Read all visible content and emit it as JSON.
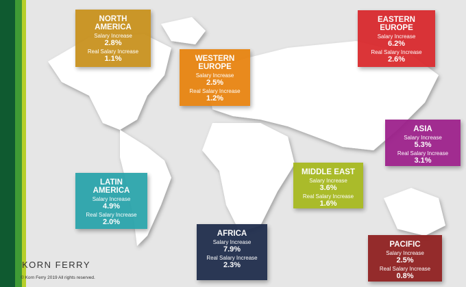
{
  "regions": [
    {
      "name_lines": [
        "NORTH",
        "AMERICA"
      ],
      "salary_label": "Salary Increase",
      "salary": "2.8%",
      "real_label": "Real Salary Increase",
      "real": "1.1%"
    },
    {
      "name_lines": [
        "WESTERN",
        "EUROPE"
      ],
      "salary_label": "Salary Increase",
      "salary": "2.5%",
      "real_label": "Real Salary Increase",
      "real": "1.2%"
    },
    {
      "name_lines": [
        "EASTERN",
        "EUROPE"
      ],
      "salary_label": "Salary Increase",
      "salary": "6.2%",
      "real_label": "Real Salary Increase",
      "real": "2.6%"
    },
    {
      "name_lines": [
        "ASIA"
      ],
      "salary_label": "Salary Increase",
      "salary": "5.3%",
      "real_label": "Real Salary Increase",
      "real": "3.1%"
    },
    {
      "name_lines": [
        "MIDDLE EAST"
      ],
      "salary_label": "Salary Increase",
      "salary": "3.6%",
      "real_label": "Real Salary Increase",
      "real": "1.6%"
    },
    {
      "name_lines": [
        "LATIN",
        "AMERICA"
      ],
      "salary_label": "Salary Increase",
      "salary": "4.9%",
      "real_label": "Real Salary Increase",
      "real": "2.0%"
    },
    {
      "name_lines": [
        "AFRICA"
      ],
      "salary_label": "Salary Increase",
      "salary": "7.9%",
      "real_label": "Real Salary Increase",
      "real": "2.3%"
    },
    {
      "name_lines": [
        "PACIFIC"
      ],
      "salary_label": "Salary Increase",
      "salary": "2.5%",
      "real_label": "Real Salary Increase",
      "real": "0.8%"
    }
  ],
  "footer": {
    "brand": "KORN FERRY",
    "copyright": "© Korn Ferry 2019 All rights reserved."
  }
}
